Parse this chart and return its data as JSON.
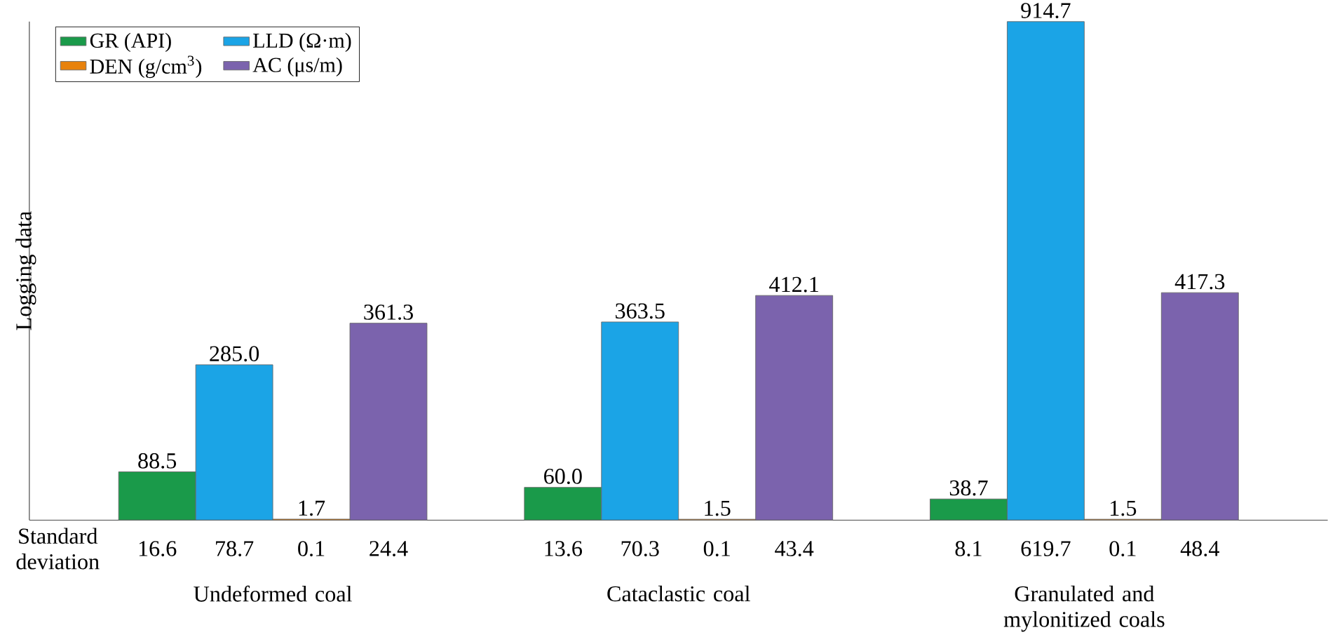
{
  "chart_data": {
    "type": "bar",
    "ylabel": "Logging data",
    "categories": [
      "Undeformed coal",
      "Cataclastic coal",
      "Granulated and mylonitized coals"
    ],
    "series": [
      {
        "name": "GR (API)",
        "color": "#1a9a4a",
        "values": [
          88.5,
          60,
          38.7
        ],
        "value_labels": [
          "88.5",
          "60.0",
          "38.7"
        ]
      },
      {
        "name": "LLD (Ω·m)",
        "color": "#1ba4e6",
        "values": [
          285,
          363.5,
          914.7
        ],
        "value_labels": [
          "285.0",
          "363.5",
          "914.7"
        ]
      },
      {
        "name": "DEN (g/cm$^{3}$)",
        "color": "#e8820c",
        "values": [
          1.7,
          1.5,
          1.5
        ],
        "value_labels": [
          "1.7",
          "1.5",
          "1.5"
        ]
      },
      {
        "name": "AC (μs/m)",
        "color": "#7b63ad",
        "values": [
          361.3,
          412.1,
          417.3
        ],
        "value_labels": [
          "361.3",
          "412.1",
          "417.3"
        ]
      }
    ],
    "legend": "top left",
    "annotations": [
      "Standard deviation",
      "16.6",
      "78.7",
      "0.1",
      "24.4",
      "13.6",
      "70.3",
      "0.1",
      "43.4",
      "8.1",
      "619.7",
      "0.1",
      "48.4"
    ]
  }
}
